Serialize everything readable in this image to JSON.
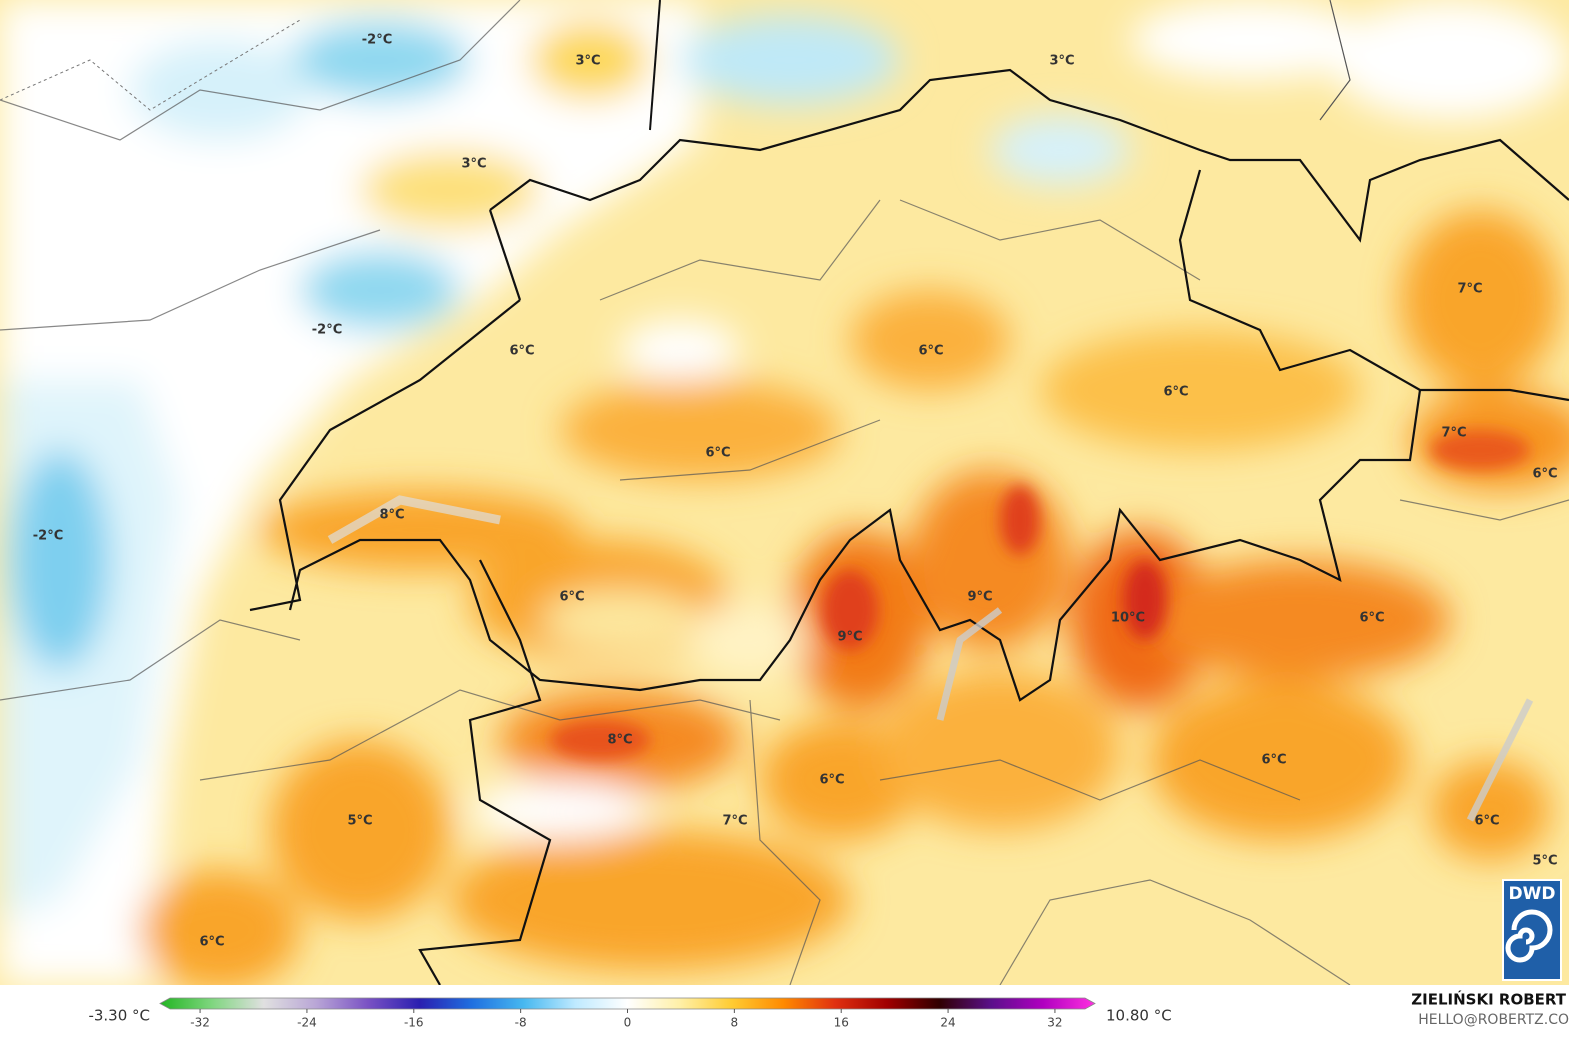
{
  "map": {
    "labels": [
      "-2°C",
      "3°C",
      "3°C",
      "3°C",
      "-2°C",
      "6°C",
      "6°C",
      "7°C",
      "6°C",
      "6°C",
      "7°C",
      "6°C",
      "-2°C",
      "8°C",
      "6°C",
      "9°C",
      "9°C",
      "10°C",
      "6°C",
      "8°C",
      "6°C",
      "6°C",
      "5°C",
      "7°C",
      "6°C",
      "5°C",
      "6°C"
    ]
  },
  "colorbar": {
    "min_label": "-3.30 °C",
    "max_label": "10.80 °C",
    "lim": [
      -35,
      35
    ],
    "ticks": [
      -32,
      -24,
      -16,
      -8,
      0,
      8,
      16,
      24,
      32
    ],
    "colors": [
      "#22b522",
      "#7fd67f",
      "#e0e0e0",
      "#b9a6d6",
      "#7a52c4",
      "#2a1fb0",
      "#1f6fe0",
      "#47b8f0",
      "#bfeaff",
      "#ffffff",
      "#fff0a8",
      "#ffcc33",
      "#ff8a00",
      "#e03010",
      "#a00000",
      "#300000",
      "#5a108a",
      "#b000c0",
      "#ff30e0"
    ]
  },
  "credits": {
    "author": "ZIELIŃSKI ROBERT",
    "email": "HELLO@ROBERTZ.CO",
    "logo": "DWD"
  }
}
